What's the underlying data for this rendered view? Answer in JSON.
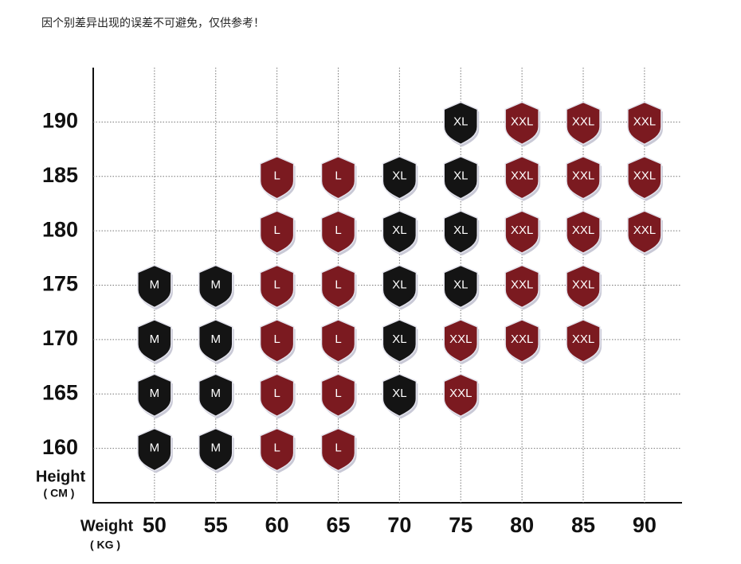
{
  "chart_data": {
    "type": "scatter",
    "note": "因个别差异出现的误差不可避免，仅供参考！",
    "x_label": "Weight",
    "x_unit": "( KG )",
    "y_label": "Height",
    "y_unit": "( CM )",
    "xlim": [
      45,
      93
    ],
    "xticks": [
      50,
      55,
      60,
      65,
      70,
      75,
      80,
      85,
      90
    ],
    "ylim": [
      155,
      195
    ],
    "yticks": [
      160,
      165,
      170,
      175,
      180,
      185,
      190
    ],
    "grid": true,
    "series": [
      {
        "name": "M",
        "color": "#141414",
        "x": [
          50,
          50,
          50,
          50,
          55,
          55,
          55,
          55
        ],
        "y": [
          160,
          165,
          170,
          175,
          160,
          165,
          170,
          175
        ]
      },
      {
        "name": "L",
        "color": "#7b1a20",
        "x": [
          60,
          60,
          60,
          60,
          60,
          60,
          65,
          65,
          65,
          65,
          65,
          65
        ],
        "y": [
          160,
          165,
          170,
          175,
          180,
          185,
          160,
          165,
          170,
          175,
          180,
          185
        ]
      },
      {
        "name": "XL",
        "color": "#141414",
        "x": [
          70,
          70,
          70,
          70,
          70,
          75,
          75,
          75,
          75
        ],
        "y": [
          165,
          170,
          175,
          180,
          185,
          175,
          180,
          185,
          190
        ]
      },
      {
        "name": "XXL",
        "color": "#7b1a20",
        "x": [
          75,
          75,
          80,
          80,
          80,
          80,
          80,
          85,
          85,
          85,
          85,
          85,
          90,
          90,
          90
        ],
        "y": [
          165,
          170,
          170,
          175,
          180,
          185,
          190,
          170,
          175,
          180,
          185,
          190,
          180,
          185,
          190
        ]
      }
    ]
  }
}
